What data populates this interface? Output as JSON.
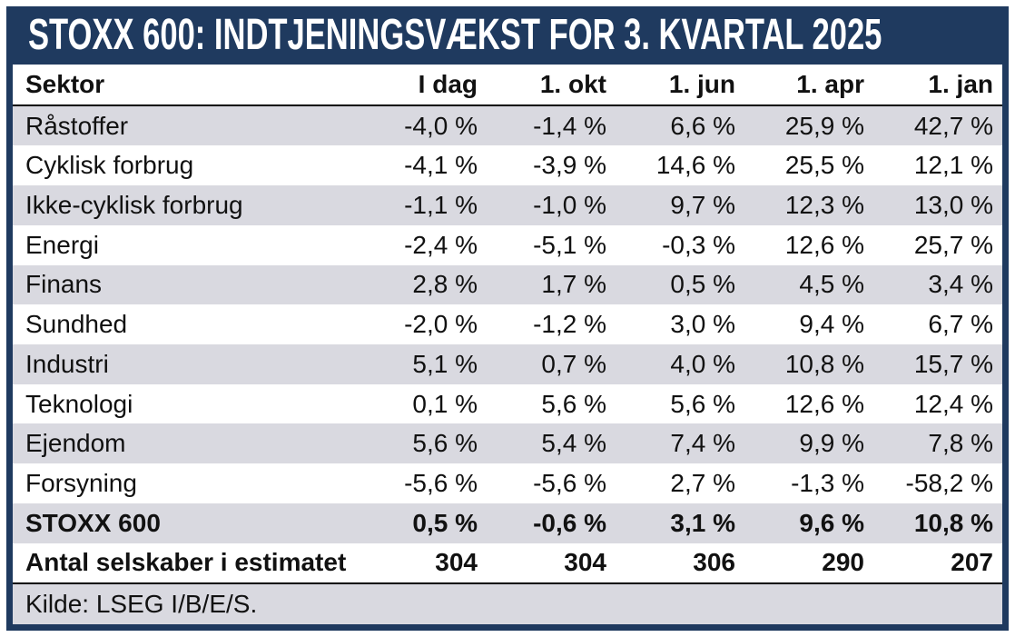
{
  "title": "STOXX 600: INDTJENINGSVÆKST FOR 3. KVARTAL 2025",
  "table": {
    "columns": [
      "Sektor",
      "I dag",
      "1. okt",
      "1. jun",
      "1. apr",
      "1. jan"
    ],
    "rows": [
      {
        "sector": "Råstoffer",
        "values": [
          "-4,0 %",
          "-1,4 %",
          "6,6 %",
          "25,9 %",
          "42,7 %"
        ]
      },
      {
        "sector": "Cyklisk forbrug",
        "values": [
          "-4,1 %",
          "-3,9 %",
          "14,6 %",
          "25,5 %",
          "12,1 %"
        ]
      },
      {
        "sector": "Ikke-cyklisk forbrug",
        "values": [
          "-1,1 %",
          "-1,0 %",
          "9,7 %",
          "12,3 %",
          "13,0 %"
        ]
      },
      {
        "sector": "Energi",
        "values": [
          "-2,4 %",
          "-5,1 %",
          "-0,3 %",
          "12,6 %",
          "25,7 %"
        ]
      },
      {
        "sector": "Finans",
        "values": [
          "2,8 %",
          "1,7 %",
          "0,5 %",
          "4,5 %",
          "3,4 %"
        ]
      },
      {
        "sector": "Sundhed",
        "values": [
          "-2,0 %",
          "-1,2 %",
          "3,0 %",
          "9,4 %",
          "6,7 %"
        ]
      },
      {
        "sector": "Industri",
        "values": [
          "5,1 %",
          "0,7 %",
          "4,0 %",
          "10,8 %",
          "15,7 %"
        ]
      },
      {
        "sector": "Teknologi",
        "values": [
          "0,1 %",
          "5,6 %",
          "5,6 %",
          "12,6 %",
          "12,4 %"
        ]
      },
      {
        "sector": "Ejendom",
        "values": [
          "5,6 %",
          "5,4 %",
          "7,4 %",
          "9,9 %",
          "7,8 %"
        ]
      },
      {
        "sector": "Forsyning",
        "values": [
          "-5,6 %",
          "-5,6 %",
          "2,7 %",
          "-1,3 %",
          "-58,2 %"
        ]
      }
    ],
    "summary": {
      "sector": "STOXX 600",
      "values": [
        "0,5 %",
        "-0,6 %",
        "3,1 %",
        "9,6 %",
        "10,8 %"
      ]
    },
    "count": {
      "sector": "Antal selskaber i estimatet",
      "values": [
        "304",
        "304",
        "306",
        "290",
        "207"
      ]
    }
  },
  "source": "Kilde: LSEG I/B/E/S.",
  "colors": {
    "navy": "#1F3A5F",
    "row_gray": "#D9D9E0",
    "header_rule": "#000000",
    "title_text": "#FFFFFF",
    "body_text": "#111111"
  },
  "chart_data": {
    "type": "table",
    "title": "STOXX 600: INDTJENINGSVÆKST FOR 3. KVARTAL 2025",
    "columns": [
      "Sektor",
      "I dag",
      "1. okt",
      "1. jun",
      "1. apr",
      "1. jan"
    ],
    "rows": [
      [
        "Råstoffer",
        -4.0,
        -1.4,
        6.6,
        25.9,
        42.7
      ],
      [
        "Cyklisk forbrug",
        -4.1,
        -3.9,
        14.6,
        25.5,
        12.1
      ],
      [
        "Ikke-cyklisk forbrug",
        -1.1,
        -1.0,
        9.7,
        12.3,
        13.0
      ],
      [
        "Energi",
        -2.4,
        -5.1,
        -0.3,
        12.6,
        25.7
      ],
      [
        "Finans",
        2.8,
        1.7,
        0.5,
        4.5,
        3.4
      ],
      [
        "Sundhed",
        -2.0,
        -1.2,
        3.0,
        9.4,
        6.7
      ],
      [
        "Industri",
        5.1,
        0.7,
        4.0,
        10.8,
        15.7
      ],
      [
        "Teknologi",
        0.1,
        5.6,
        5.6,
        12.6,
        12.4
      ],
      [
        "Ejendom",
        5.6,
        5.4,
        7.4,
        9.9,
        7.8
      ],
      [
        "Forsyning",
        -5.6,
        -5.6,
        2.7,
        -1.3,
        -58.2
      ],
      [
        "STOXX 600",
        0.5,
        -0.6,
        3.1,
        9.6,
        10.8
      ],
      [
        "Antal selskaber i estimatet",
        304,
        304,
        306,
        290,
        207
      ]
    ],
    "value_unit": "percent (rows 1-11), count (row 12)",
    "source": "Kilde: LSEG I/B/E/S."
  }
}
